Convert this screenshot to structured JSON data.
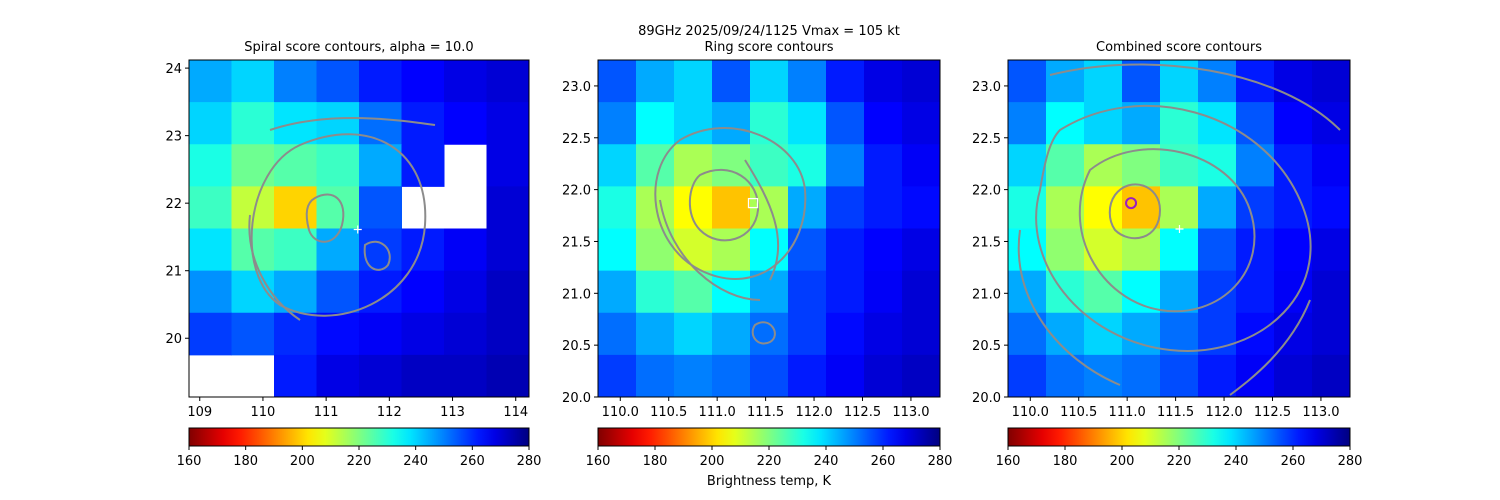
{
  "title": "89GHz  2025/09/24/1125    Vmax = 105 kt",
  "colorbar_label": "Brightness temp, K",
  "chart_data": [
    {
      "type": "heatmap",
      "title": "Spiral score contours, alpha = 10.0",
      "xlim": [
        108.83,
        114.21
      ],
      "ylim": [
        19.13,
        24.12
      ],
      "xticks": [
        109,
        110,
        111,
        112,
        113,
        114
      ],
      "yticks": [
        20,
        21,
        22,
        23,
        24
      ],
      "values": [
        [
          245,
          240,
          250,
          255,
          262,
          265,
          268,
          270
        ],
        [
          240,
          230,
          238,
          240,
          252,
          262,
          265,
          268
        ],
        [
          232,
          222,
          225,
          228,
          245,
          262,
          null,
          268
        ],
        [
          228,
          212,
          200,
          225,
          255,
          null,
          null,
          270
        ],
        [
          238,
          225,
          228,
          245,
          258,
          262,
          266,
          270
        ],
        [
          248,
          240,
          245,
          255,
          262,
          265,
          268,
          272
        ],
        [
          258,
          255,
          260,
          264,
          266,
          268,
          270,
          272
        ],
        [
          null,
          null,
          262,
          268,
          270,
          272,
          272,
          274
        ]
      ],
      "markers": [
        {
          "x": 111.5,
          "y": 21.61,
          "shape": "plus",
          "color": "#ffffff"
        }
      ],
      "colorbar": {
        "lim": [
          160,
          280
        ],
        "ticks": [
          160,
          180,
          200,
          220,
          240,
          260,
          280
        ],
        "cmap": "jet_r"
      }
    },
    {
      "type": "heatmap",
      "title": "Ring score contours",
      "xlim": [
        109.77,
        113.3
      ],
      "ylim": [
        20,
        23.25
      ],
      "xticks": [
        {
          "value": 110,
          "label": "110.0"
        },
        {
          "value": 110.5,
          "label": "110.5"
        },
        {
          "value": 111,
          "label": "111.0"
        },
        {
          "value": 111.5,
          "label": "111.5"
        },
        {
          "value": 112,
          "label": "112.0"
        },
        {
          "value": 112.5,
          "label": "112.5"
        },
        {
          "value": 113,
          "label": "113.0"
        }
      ],
      "yticks": [
        {
          "value": 20,
          "label": "20.0"
        },
        {
          "value": 20.5,
          "label": "20.5"
        },
        {
          "value": 21,
          "label": "21.0"
        },
        {
          "value": 21.5,
          "label": "21.5"
        },
        {
          "value": 22,
          "label": "22.0"
        },
        {
          "value": 22.5,
          "label": "22.5"
        },
        {
          "value": 23,
          "label": "23.0"
        }
      ],
      "values": [
        [
          255,
          245,
          240,
          255,
          240,
          250,
          262,
          268,
          270
        ],
        [
          250,
          235,
          240,
          245,
          230,
          238,
          255,
          265,
          268
        ],
        [
          240,
          225,
          215,
          220,
          228,
          232,
          250,
          262,
          266
        ],
        [
          232,
          215,
          205,
          198,
          215,
          245,
          258,
          262,
          264
        ],
        [
          235,
          218,
          210,
          215,
          235,
          255,
          262,
          265,
          268
        ],
        [
          245,
          230,
          225,
          235,
          245,
          258,
          262,
          266,
          270
        ],
        [
          252,
          245,
          240,
          245,
          252,
          258,
          264,
          268,
          270
        ],
        [
          258,
          252,
          250,
          252,
          256,
          262,
          266,
          270,
          272
        ]
      ],
      "markers": [
        {
          "x": 111.37,
          "y": 21.87,
          "shape": "square",
          "color": "#ffffff"
        }
      ],
      "colorbar": {
        "lim": [
          160,
          280
        ],
        "ticks": [
          160,
          180,
          200,
          220,
          240,
          260,
          280
        ],
        "cmap": "jet_r"
      }
    },
    {
      "type": "heatmap",
      "title": "Combined score contours",
      "xlim": [
        109.77,
        113.3
      ],
      "ylim": [
        20,
        23.25
      ],
      "xticks": [
        {
          "value": 110,
          "label": "110.0"
        },
        {
          "value": 110.5,
          "label": "110.5"
        },
        {
          "value": 111,
          "label": "111.0"
        },
        {
          "value": 111.5,
          "label": "111.5"
        },
        {
          "value": 112,
          "label": "112.0"
        },
        {
          "value": 112.5,
          "label": "112.5"
        },
        {
          "value": 113,
          "label": "113.0"
        }
      ],
      "yticks": [
        {
          "value": 20,
          "label": "20.0"
        },
        {
          "value": 20.5,
          "label": "20.5"
        },
        {
          "value": 21,
          "label": "21.0"
        },
        {
          "value": 21.5,
          "label": "21.5"
        },
        {
          "value": 22,
          "label": "22.0"
        },
        {
          "value": 22.5,
          "label": "22.5"
        },
        {
          "value": 23,
          "label": "23.0"
        }
      ],
      "values": [
        [
          255,
          245,
          240,
          255,
          240,
          250,
          262,
          268,
          270
        ],
        [
          250,
          235,
          240,
          245,
          230,
          238,
          255,
          265,
          268
        ],
        [
          240,
          225,
          215,
          220,
          228,
          232,
          250,
          262,
          266
        ],
        [
          232,
          215,
          205,
          198,
          215,
          245,
          258,
          262,
          264
        ],
        [
          235,
          218,
          210,
          215,
          235,
          255,
          262,
          265,
          268
        ],
        [
          245,
          230,
          225,
          235,
          245,
          258,
          262,
          266,
          270
        ],
        [
          252,
          245,
          240,
          245,
          252,
          258,
          264,
          268,
          270
        ],
        [
          258,
          252,
          250,
          252,
          256,
          262,
          266,
          270,
          272
        ]
      ],
      "markers": [
        {
          "x": 111.54,
          "y": 21.62,
          "shape": "plus",
          "color": "#ffffff"
        },
        {
          "x": 111.04,
          "y": 21.87,
          "shape": "circle",
          "color": "#9b1fc0"
        }
      ],
      "colorbar": {
        "lim": [
          160,
          280
        ],
        "ticks": [
          160,
          180,
          200,
          220,
          240,
          260,
          280
        ],
        "cmap": "jet_r"
      }
    }
  ]
}
